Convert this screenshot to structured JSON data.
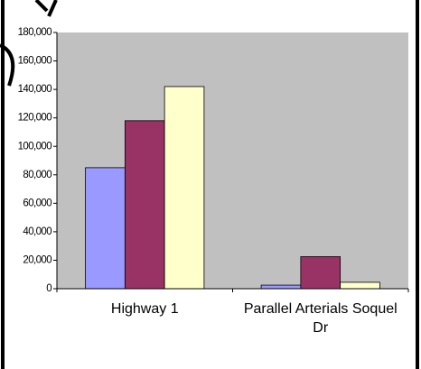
{
  "chart_data": {
    "type": "bar",
    "categories": [
      "Highway 1",
      "Parallel Arterials Soquel Dr"
    ],
    "series": [
      {
        "color": "#9999ff",
        "values": [
          85000,
          2500
        ]
      },
      {
        "color": "#993366",
        "values": [
          118000,
          22500
        ]
      },
      {
        "color": "#ffffcc",
        "values": [
          142000,
          4500
        ]
      }
    ],
    "ylim": [
      0,
      180000
    ],
    "yticks": [
      {
        "value": 0,
        "label": "0"
      },
      {
        "value": 20000,
        "label": "20,000"
      },
      {
        "value": 40000,
        "label": "40,000"
      },
      {
        "value": 60000,
        "label": "60,000"
      },
      {
        "value": 80000,
        "label": "80,000"
      },
      {
        "value": 100000,
        "label": "100,000"
      },
      {
        "value": 120000,
        "label": "120,000"
      },
      {
        "value": 140000,
        "label": "140,000"
      },
      {
        "value": 160000,
        "label": "160,000"
      },
      {
        "value": 180000,
        "label": "180,000"
      }
    ],
    "plot_background": "#c0c0c0"
  }
}
